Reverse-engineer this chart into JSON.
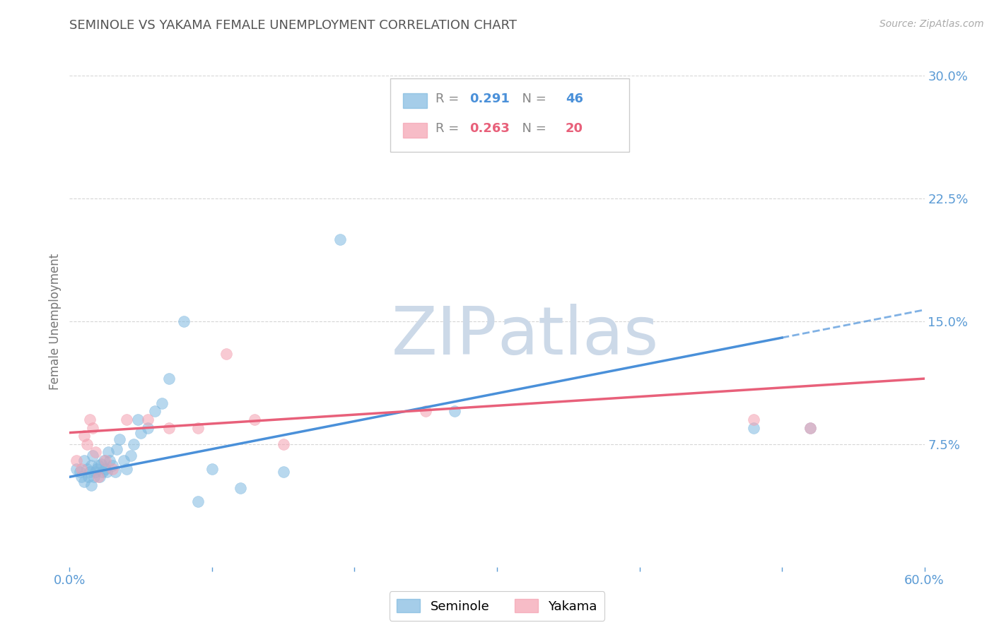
{
  "title": "SEMINOLE VS YAKAMA FEMALE UNEMPLOYMENT CORRELATION CHART",
  "source": "Source: ZipAtlas.com",
  "ylabel": "Female Unemployment",
  "xlim": [
    0.0,
    0.6
  ],
  "ylim": [
    0.0,
    0.3
  ],
  "yticks_right": [
    0.075,
    0.15,
    0.225,
    0.3
  ],
  "yticklabels_right": [
    "7.5%",
    "15.0%",
    "22.5%",
    "30.0%"
  ],
  "seminole_R": 0.291,
  "seminole_N": 46,
  "yakama_R": 0.263,
  "yakama_N": 20,
  "seminole_color": "#7fb9e0",
  "yakama_color": "#f4a0b0",
  "trend_seminole_color": "#4a90d9",
  "trend_yakama_color": "#e8607a",
  "seminole_x": [
    0.005,
    0.007,
    0.008,
    0.01,
    0.01,
    0.012,
    0.013,
    0.014,
    0.015,
    0.015,
    0.016,
    0.017,
    0.018,
    0.019,
    0.02,
    0.021,
    0.022,
    0.023,
    0.024,
    0.025,
    0.026,
    0.027,
    0.028,
    0.03,
    0.032,
    0.033,
    0.035,
    0.038,
    0.04,
    0.043,
    0.045,
    0.048,
    0.05,
    0.055,
    0.06,
    0.065,
    0.07,
    0.08,
    0.09,
    0.1,
    0.12,
    0.15,
    0.19,
    0.27,
    0.48,
    0.52
  ],
  "seminole_y": [
    0.06,
    0.058,
    0.055,
    0.052,
    0.065,
    0.06,
    0.055,
    0.058,
    0.05,
    0.062,
    0.068,
    0.055,
    0.058,
    0.06,
    0.062,
    0.055,
    0.063,
    0.058,
    0.065,
    0.06,
    0.058,
    0.07,
    0.065,
    0.062,
    0.058,
    0.072,
    0.078,
    0.065,
    0.06,
    0.068,
    0.075,
    0.09,
    0.082,
    0.085,
    0.095,
    0.1,
    0.115,
    0.15,
    0.04,
    0.06,
    0.048,
    0.058,
    0.2,
    0.095,
    0.085,
    0.085
  ],
  "yakama_x": [
    0.005,
    0.008,
    0.01,
    0.012,
    0.014,
    0.016,
    0.018,
    0.02,
    0.025,
    0.03,
    0.04,
    0.055,
    0.07,
    0.09,
    0.11,
    0.13,
    0.15,
    0.25,
    0.48,
    0.52
  ],
  "yakama_y": [
    0.065,
    0.06,
    0.08,
    0.075,
    0.09,
    0.085,
    0.07,
    0.055,
    0.065,
    0.06,
    0.09,
    0.09,
    0.085,
    0.085,
    0.13,
    0.09,
    0.075,
    0.095,
    0.09,
    0.085
  ],
  "watermark_zip": "ZIP",
  "watermark_atlas": "atlas",
  "watermark_color": "#ccd9e8",
  "background_color": "#ffffff",
  "title_color": "#555555",
  "axis_color": "#5b9bd5",
  "grid_color": "#cccccc"
}
